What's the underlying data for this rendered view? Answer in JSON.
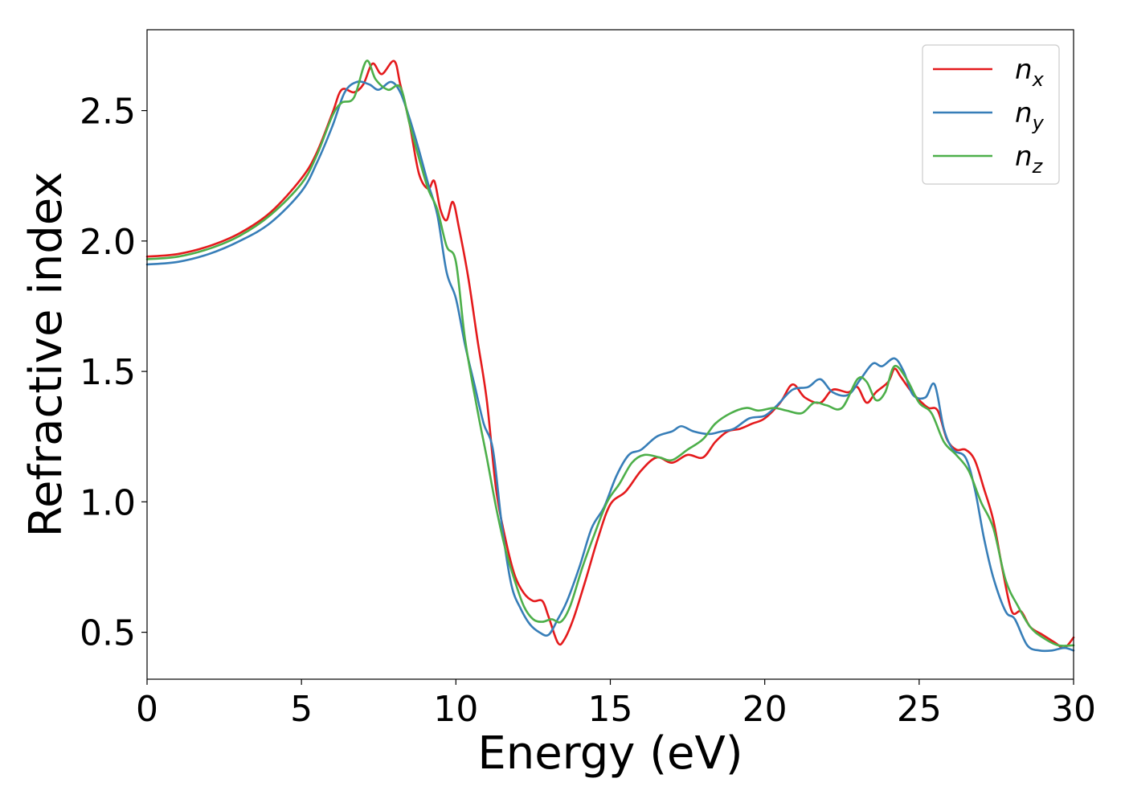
{
  "chart_data": {
    "type": "line",
    "title": "",
    "xlabel": "Energy (eV)",
    "ylabel": "Refractive index",
    "xlim": [
      0,
      30
    ],
    "ylim": [
      0.32,
      2.81
    ],
    "xticks": [
      0,
      5,
      10,
      15,
      20,
      25,
      30
    ],
    "xtick_labels": [
      "0",
      "5",
      "10",
      "15",
      "20",
      "25",
      "30"
    ],
    "yticks": [
      0.5,
      1.0,
      1.5,
      2.0,
      2.5
    ],
    "ytick_labels": [
      "0.5",
      "1.0",
      "1.5",
      "2.0",
      "2.5"
    ],
    "grid": false,
    "legend_position": "top-right",
    "series": [
      {
        "name": "n",
        "subscript": "x",
        "color": "#e41a1c",
        "points": [
          [
            0,
            1.94
          ],
          [
            1,
            1.95
          ],
          [
            2,
            1.98
          ],
          [
            3,
            2.03
          ],
          [
            4,
            2.11
          ],
          [
            5,
            2.24
          ],
          [
            5.5,
            2.34
          ],
          [
            6,
            2.49
          ],
          [
            6.3,
            2.58
          ],
          [
            6.7,
            2.57
          ],
          [
            7,
            2.6
          ],
          [
            7.3,
            2.68
          ],
          [
            7.6,
            2.64
          ],
          [
            8,
            2.69
          ],
          [
            8.2,
            2.6
          ],
          [
            8.5,
            2.45
          ],
          [
            8.8,
            2.26
          ],
          [
            9.1,
            2.2
          ],
          [
            9.3,
            2.23
          ],
          [
            9.5,
            2.12
          ],
          [
            9.7,
            2.08
          ],
          [
            9.9,
            2.15
          ],
          [
            10.1,
            2.05
          ],
          [
            10.4,
            1.86
          ],
          [
            10.7,
            1.62
          ],
          [
            11,
            1.39
          ],
          [
            11.3,
            1.05
          ],
          [
            11.6,
            0.86
          ],
          [
            11.9,
            0.72
          ],
          [
            12.2,
            0.65
          ],
          [
            12.5,
            0.62
          ],
          [
            12.8,
            0.62
          ],
          [
            13,
            0.56
          ],
          [
            13.3,
            0.46
          ],
          [
            13.5,
            0.47
          ],
          [
            13.8,
            0.55
          ],
          [
            14.2,
            0.7
          ],
          [
            14.6,
            0.86
          ],
          [
            15,
            0.99
          ],
          [
            15.5,
            1.04
          ],
          [
            16,
            1.12
          ],
          [
            16.5,
            1.17
          ],
          [
            17,
            1.15
          ],
          [
            17.5,
            1.18
          ],
          [
            18,
            1.17
          ],
          [
            18.4,
            1.23
          ],
          [
            18.8,
            1.27
          ],
          [
            19.2,
            1.28
          ],
          [
            19.6,
            1.3
          ],
          [
            20,
            1.32
          ],
          [
            20.5,
            1.38
          ],
          [
            20.9,
            1.45
          ],
          [
            21.3,
            1.4
          ],
          [
            21.8,
            1.38
          ],
          [
            22.2,
            1.43
          ],
          [
            22.7,
            1.42
          ],
          [
            23,
            1.44
          ],
          [
            23.3,
            1.38
          ],
          [
            23.6,
            1.42
          ],
          [
            24,
            1.46
          ],
          [
            24.2,
            1.51
          ],
          [
            24.4,
            1.48
          ],
          [
            24.7,
            1.43
          ],
          [
            25,
            1.39
          ],
          [
            25.3,
            1.36
          ],
          [
            25.6,
            1.35
          ],
          [
            25.9,
            1.24
          ],
          [
            26.2,
            1.2
          ],
          [
            26.5,
            1.2
          ],
          [
            26.8,
            1.16
          ],
          [
            27.1,
            1.05
          ],
          [
            27.4,
            0.93
          ],
          [
            27.7,
            0.74
          ],
          [
            28,
            0.58
          ],
          [
            28.3,
            0.58
          ],
          [
            28.6,
            0.52
          ],
          [
            29,
            0.49
          ],
          [
            29.4,
            0.46
          ],
          [
            29.7,
            0.44
          ],
          [
            30,
            0.48
          ]
        ]
      },
      {
        "name": "n",
        "subscript": "y",
        "color": "#377eb8",
        "points": [
          [
            0,
            1.91
          ],
          [
            1,
            1.92
          ],
          [
            2,
            1.95
          ],
          [
            3,
            2.0
          ],
          [
            4,
            2.07
          ],
          [
            5,
            2.19
          ],
          [
            5.5,
            2.3
          ],
          [
            6,
            2.44
          ],
          [
            6.4,
            2.57
          ],
          [
            6.8,
            2.61
          ],
          [
            7.2,
            2.6
          ],
          [
            7.5,
            2.58
          ],
          [
            7.9,
            2.61
          ],
          [
            8.2,
            2.57
          ],
          [
            8.5,
            2.47
          ],
          [
            8.8,
            2.35
          ],
          [
            9.1,
            2.22
          ],
          [
            9.4,
            2.1
          ],
          [
            9.7,
            1.88
          ],
          [
            10,
            1.78
          ],
          [
            10.3,
            1.6
          ],
          [
            10.6,
            1.45
          ],
          [
            10.9,
            1.3
          ],
          [
            11.2,
            1.2
          ],
          [
            11.5,
            0.9
          ],
          [
            11.8,
            0.68
          ],
          [
            12.1,
            0.59
          ],
          [
            12.4,
            0.53
          ],
          [
            12.7,
            0.5
          ],
          [
            13,
            0.49
          ],
          [
            13.3,
            0.55
          ],
          [
            13.6,
            0.62
          ],
          [
            14,
            0.75
          ],
          [
            14.4,
            0.9
          ],
          [
            14.8,
            0.98
          ],
          [
            15.2,
            1.1
          ],
          [
            15.6,
            1.18
          ],
          [
            16,
            1.2
          ],
          [
            16.5,
            1.25
          ],
          [
            17,
            1.27
          ],
          [
            17.3,
            1.29
          ],
          [
            17.7,
            1.27
          ],
          [
            18.2,
            1.26
          ],
          [
            18.6,
            1.27
          ],
          [
            19,
            1.28
          ],
          [
            19.5,
            1.32
          ],
          [
            20,
            1.33
          ],
          [
            20.4,
            1.37
          ],
          [
            20.9,
            1.43
          ],
          [
            21.4,
            1.44
          ],
          [
            21.8,
            1.47
          ],
          [
            22.2,
            1.42
          ],
          [
            22.7,
            1.41
          ],
          [
            23.1,
            1.47
          ],
          [
            23.5,
            1.53
          ],
          [
            23.8,
            1.52
          ],
          [
            24.2,
            1.55
          ],
          [
            24.5,
            1.5
          ],
          [
            24.8,
            1.41
          ],
          [
            25.2,
            1.4
          ],
          [
            25.5,
            1.45
          ],
          [
            25.8,
            1.28
          ],
          [
            26.1,
            1.2
          ],
          [
            26.5,
            1.17
          ],
          [
            26.8,
            1.05
          ],
          [
            27.1,
            0.86
          ],
          [
            27.4,
            0.71
          ],
          [
            27.8,
            0.58
          ],
          [
            28.1,
            0.55
          ],
          [
            28.5,
            0.45
          ],
          [
            28.9,
            0.43
          ],
          [
            29.3,
            0.43
          ],
          [
            29.7,
            0.44
          ],
          [
            30,
            0.43
          ]
        ]
      },
      {
        "name": "n",
        "subscript": "z",
        "color": "#4daf4a",
        "points": [
          [
            0,
            1.93
          ],
          [
            1,
            1.94
          ],
          [
            2,
            1.97
          ],
          [
            3,
            2.02
          ],
          [
            4,
            2.1
          ],
          [
            5,
            2.22
          ],
          [
            5.5,
            2.33
          ],
          [
            6,
            2.48
          ],
          [
            6.3,
            2.53
          ],
          [
            6.7,
            2.55
          ],
          [
            7.1,
            2.69
          ],
          [
            7.4,
            2.62
          ],
          [
            7.8,
            2.58
          ],
          [
            8.2,
            2.59
          ],
          [
            8.5,
            2.45
          ],
          [
            8.8,
            2.32
          ],
          [
            9.1,
            2.2
          ],
          [
            9.4,
            2.12
          ],
          [
            9.7,
            1.98
          ],
          [
            10,
            1.92
          ],
          [
            10.3,
            1.62
          ],
          [
            10.7,
            1.35
          ],
          [
            11,
            1.17
          ],
          [
            11.3,
            0.98
          ],
          [
            11.6,
            0.82
          ],
          [
            11.9,
            0.7
          ],
          [
            12.2,
            0.6
          ],
          [
            12.5,
            0.55
          ],
          [
            12.8,
            0.54
          ],
          [
            13.1,
            0.55
          ],
          [
            13.4,
            0.54
          ],
          [
            13.7,
            0.6
          ],
          [
            14.1,
            0.75
          ],
          [
            14.5,
            0.88
          ],
          [
            14.9,
            1.0
          ],
          [
            15.3,
            1.07
          ],
          [
            15.7,
            1.15
          ],
          [
            16.1,
            1.18
          ],
          [
            16.6,
            1.17
          ],
          [
            17,
            1.16
          ],
          [
            17.5,
            1.2
          ],
          [
            18,
            1.24
          ],
          [
            18.4,
            1.3
          ],
          [
            18.9,
            1.34
          ],
          [
            19.4,
            1.36
          ],
          [
            19.8,
            1.35
          ],
          [
            20.3,
            1.36
          ],
          [
            20.7,
            1.35
          ],
          [
            21.2,
            1.34
          ],
          [
            21.6,
            1.38
          ],
          [
            22,
            1.37
          ],
          [
            22.5,
            1.36
          ],
          [
            23,
            1.47
          ],
          [
            23.3,
            1.46
          ],
          [
            23.6,
            1.39
          ],
          [
            23.9,
            1.42
          ],
          [
            24.2,
            1.52
          ],
          [
            24.6,
            1.47
          ],
          [
            25,
            1.38
          ],
          [
            25.4,
            1.34
          ],
          [
            25.8,
            1.23
          ],
          [
            26.2,
            1.18
          ],
          [
            26.6,
            1.12
          ],
          [
            27,
            1.0
          ],
          [
            27.4,
            0.9
          ],
          [
            27.8,
            0.7
          ],
          [
            28.2,
            0.6
          ],
          [
            28.6,
            0.52
          ],
          [
            29,
            0.48
          ],
          [
            29.5,
            0.45
          ],
          [
            30,
            0.45
          ]
        ]
      }
    ]
  }
}
